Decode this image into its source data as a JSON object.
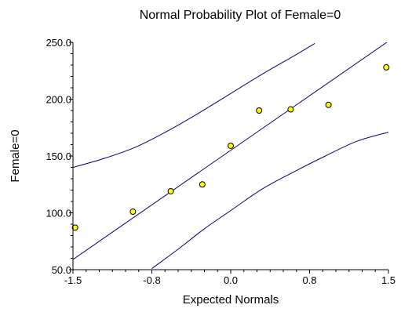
{
  "chart_data": {
    "type": "scatter",
    "title": "Normal Probability Plot of Female=0",
    "xlabel": "Expected Normals",
    "ylabel": "Female=0",
    "xlim": [
      -1.5,
      1.5
    ],
    "ylim": [
      50,
      250
    ],
    "x_ticks": [
      "-1.5",
      "-0.8",
      "0.0",
      "0.8",
      "1.5"
    ],
    "y_ticks": [
      "50.0",
      "100.0",
      "150.0",
      "200.0",
      "250.0"
    ],
    "grid": false,
    "points": [
      {
        "x": -1.48,
        "y": 87
      },
      {
        "x": -0.93,
        "y": 101
      },
      {
        "x": -0.57,
        "y": 119
      },
      {
        "x": -0.27,
        "y": 125
      },
      {
        "x": 0.0,
        "y": 159
      },
      {
        "x": 0.27,
        "y": 190
      },
      {
        "x": 0.57,
        "y": 191
      },
      {
        "x": 0.93,
        "y": 195
      },
      {
        "x": 1.48,
        "y": 228
      }
    ],
    "reference_line": {
      "intercept": 155,
      "slope": 64
    },
    "confidence_band": {
      "upper": [
        [
          -1.5,
          140
        ],
        [
          -1.2,
          148
        ],
        [
          -0.9,
          158
        ],
        [
          -0.6,
          172
        ],
        [
          -0.3,
          188
        ],
        [
          0.0,
          205
        ],
        [
          0.3,
          222
        ],
        [
          0.6,
          238
        ],
        [
          0.8,
          249
        ]
      ],
      "lower": [
        [
          -0.75,
          51
        ],
        [
          -0.5,
          68
        ],
        [
          -0.25,
          86
        ],
        [
          0.0,
          102
        ],
        [
          0.3,
          121
        ],
        [
          0.6,
          136
        ],
        [
          0.9,
          150
        ],
        [
          1.2,
          163
        ],
        [
          1.5,
          171
        ]
      ]
    },
    "colors": {
      "line": "#000080",
      "point_fill": "#ffff00",
      "point_stroke": "#000000",
      "axis": "#000000"
    }
  }
}
